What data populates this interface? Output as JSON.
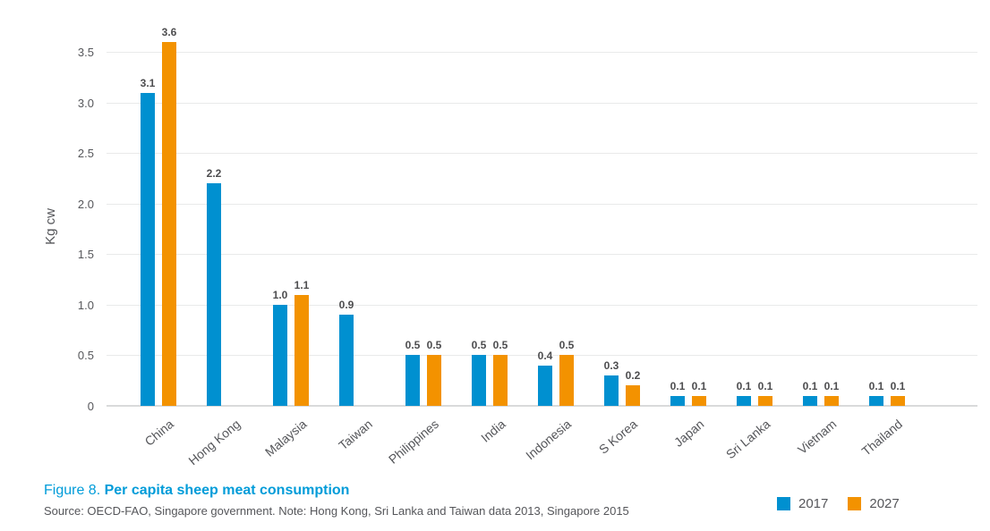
{
  "chart_data": {
    "type": "bar",
    "categories": [
      "China",
      "Hong Kong",
      "Malaysia",
      "Taiwan",
      "Philippines",
      "India",
      "Indonesia",
      "S Korea",
      "Japan",
      "Sri Lanka",
      "Vietnam",
      "Thailand"
    ],
    "series": [
      {
        "name": "2017",
        "color": "#0090d0",
        "values": [
          3.1,
          2.2,
          1.0,
          0.9,
          0.5,
          0.5,
          0.4,
          0.3,
          0.1,
          0.1,
          0.1,
          0.1
        ]
      },
      {
        "name": "2027",
        "color": "#f39200",
        "values": [
          3.6,
          null,
          1.1,
          null,
          0.5,
          0.5,
          0.5,
          0.2,
          0.1,
          0.1,
          0.1,
          0.1
        ]
      }
    ],
    "ylabel": "Kg cw",
    "yticks": [
      0,
      0.5,
      1.0,
      1.5,
      2.0,
      2.5,
      3.0,
      3.5
    ],
    "ylim": [
      0,
      3.6
    ],
    "grid": true,
    "value_labels": true,
    "legend_position": "bottom-right"
  },
  "caption": {
    "figure_label": "Figure 8. ",
    "title": "Per capita sheep meat consumption"
  },
  "source": "Source: OECD-FAO, Singapore government. Note: Hong Kong, Sri Lanka and Taiwan data 2013, Singapore 2015",
  "colors": {
    "series_2017": "#0090d0",
    "series_2027": "#f39200",
    "caption_blue": "#009cd9",
    "gridline": "#e9eaea",
    "text_gray": "#55565a"
  }
}
